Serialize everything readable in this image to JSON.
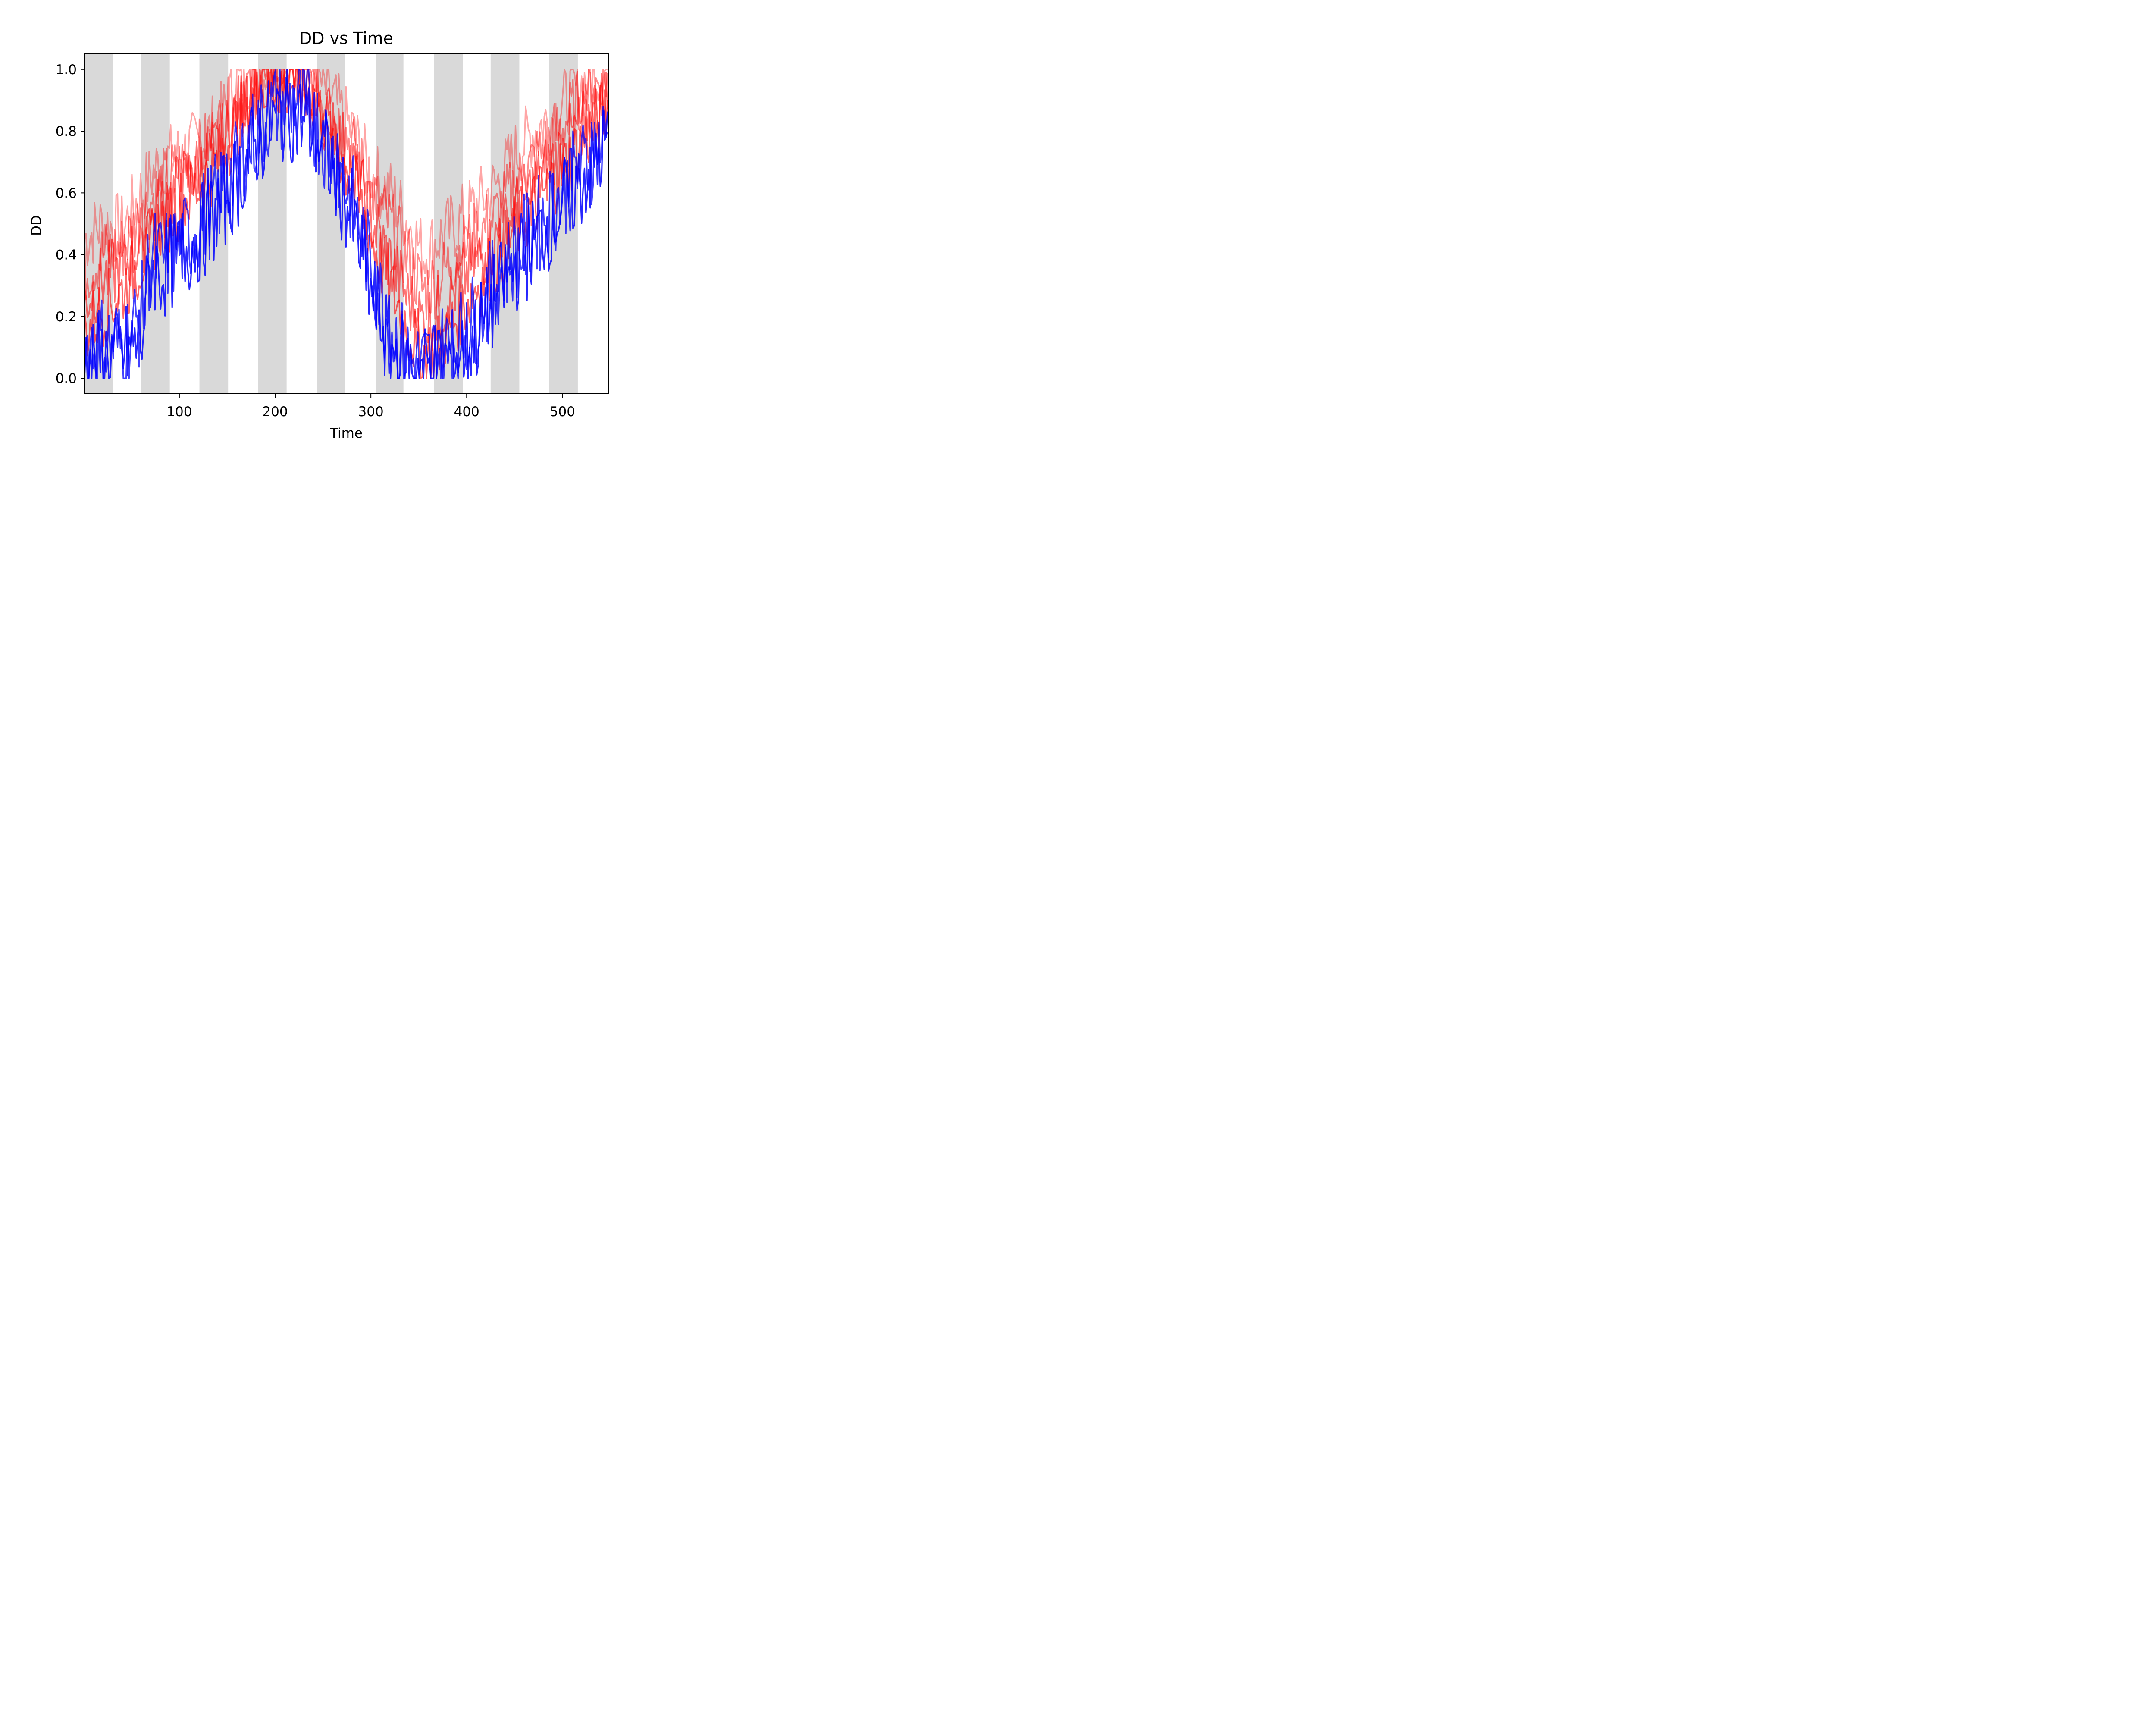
{
  "chart_data": {
    "type": "line",
    "title": "DD vs Time",
    "xlabel": "Time",
    "ylabel": "DD",
    "xlim": [
      1,
      548
    ],
    "ylim": [
      -0.05,
      1.05
    ],
    "x_ticks": [
      100,
      200,
      300,
      400,
      500
    ],
    "y_ticks": [
      0.0,
      0.2,
      0.4,
      0.6,
      0.8,
      1.0
    ],
    "y_tick_labels": [
      "0.0",
      "0.2",
      "0.4",
      "0.6",
      "0.8",
      "1.0"
    ],
    "grid": false,
    "legend": "none",
    "shaded_bands": [
      [
        1,
        31
      ],
      [
        60,
        90
      ],
      [
        121,
        151
      ],
      [
        182,
        212
      ],
      [
        244,
        273
      ],
      [
        305,
        334
      ],
      [
        366,
        396
      ],
      [
        425,
        455
      ],
      [
        486,
        516
      ]
    ],
    "colors": {
      "band": "#d9d9d9",
      "red": "#ff0000",
      "blue": "#0000ff"
    },
    "series": [
      {
        "color": "red",
        "opacity": 0.35,
        "values": [
          [
            1,
            0.45
          ],
          [
            20,
            0.5
          ],
          [
            40,
            0.48
          ],
          [
            60,
            0.6
          ],
          [
            80,
            0.7
          ],
          [
            100,
            0.72
          ],
          [
            120,
            0.76
          ],
          [
            140,
            0.82
          ],
          [
            160,
            0.95
          ],
          [
            180,
            1.0
          ],
          [
            200,
            1.0
          ],
          [
            220,
            1.0
          ],
          [
            240,
            0.98
          ],
          [
            260,
            0.9
          ],
          [
            280,
            0.8
          ],
          [
            300,
            0.66
          ],
          [
            320,
            0.6
          ],
          [
            340,
            0.5
          ],
          [
            355,
            0.4
          ],
          [
            370,
            0.45
          ],
          [
            390,
            0.5
          ],
          [
            410,
            0.56
          ],
          [
            430,
            0.62
          ],
          [
            450,
            0.72
          ],
          [
            470,
            0.8
          ],
          [
            490,
            0.85
          ],
          [
            510,
            0.92
          ],
          [
            530,
            0.98
          ],
          [
            548,
            1.0
          ]
        ]
      },
      {
        "color": "red",
        "opacity": 0.45,
        "values": [
          [
            1,
            0.35
          ],
          [
            20,
            0.4
          ],
          [
            40,
            0.42
          ],
          [
            60,
            0.52
          ],
          [
            80,
            0.62
          ],
          [
            100,
            0.68
          ],
          [
            120,
            0.72
          ],
          [
            140,
            0.8
          ],
          [
            160,
            0.9
          ],
          [
            180,
            0.97
          ],
          [
            200,
            1.0
          ],
          [
            220,
            1.0
          ],
          [
            240,
            0.96
          ],
          [
            260,
            0.86
          ],
          [
            280,
            0.76
          ],
          [
            300,
            0.6
          ],
          [
            320,
            0.5
          ],
          [
            340,
            0.38
          ],
          [
            355,
            0.28
          ],
          [
            370,
            0.32
          ],
          [
            390,
            0.4
          ],
          [
            410,
            0.46
          ],
          [
            430,
            0.52
          ],
          [
            450,
            0.62
          ],
          [
            470,
            0.7
          ],
          [
            490,
            0.78
          ],
          [
            510,
            0.86
          ],
          [
            530,
            0.93
          ],
          [
            548,
            0.98
          ]
        ]
      },
      {
        "color": "red",
        "opacity": 0.55,
        "values": [
          [
            1,
            0.25
          ],
          [
            20,
            0.32
          ],
          [
            40,
            0.35
          ],
          [
            60,
            0.45
          ],
          [
            80,
            0.55
          ],
          [
            100,
            0.62
          ],
          [
            120,
            0.68
          ],
          [
            140,
            0.74
          ],
          [
            160,
            0.86
          ],
          [
            180,
            0.95
          ],
          [
            200,
            0.97
          ],
          [
            220,
            0.98
          ],
          [
            240,
            0.93
          ],
          [
            260,
            0.82
          ],
          [
            280,
            0.7
          ],
          [
            300,
            0.52
          ],
          [
            320,
            0.38
          ],
          [
            340,
            0.25
          ],
          [
            355,
            0.18
          ],
          [
            370,
            0.22
          ],
          [
            390,
            0.3
          ],
          [
            410,
            0.38
          ],
          [
            430,
            0.44
          ],
          [
            450,
            0.54
          ],
          [
            470,
            0.62
          ],
          [
            490,
            0.7
          ],
          [
            510,
            0.78
          ],
          [
            530,
            0.86
          ],
          [
            548,
            0.92
          ]
        ]
      },
      {
        "color": "red",
        "opacity": 0.6,
        "values": [
          [
            1,
            0.15
          ],
          [
            20,
            0.22
          ],
          [
            40,
            0.28
          ],
          [
            60,
            0.38
          ],
          [
            80,
            0.5
          ],
          [
            100,
            0.56
          ],
          [
            120,
            0.62
          ],
          [
            140,
            0.7
          ],
          [
            160,
            0.82
          ],
          [
            180,
            0.92
          ],
          [
            200,
            0.95
          ],
          [
            220,
            0.96
          ],
          [
            240,
            0.9
          ],
          [
            260,
            0.78
          ],
          [
            280,
            0.64
          ],
          [
            300,
            0.46
          ],
          [
            320,
            0.3
          ],
          [
            340,
            0.15
          ],
          [
            355,
            0.08
          ],
          [
            370,
            0.1
          ],
          [
            390,
            0.2
          ],
          [
            410,
            0.3
          ],
          [
            430,
            0.38
          ],
          [
            450,
            0.48
          ],
          [
            470,
            0.56
          ],
          [
            490,
            0.64
          ],
          [
            510,
            0.72
          ],
          [
            530,
            0.8
          ],
          [
            548,
            0.88
          ]
        ]
      },
      {
        "color": "blue",
        "opacity": 0.75,
        "values": [
          [
            1,
            0.1
          ],
          [
            20,
            0.12
          ],
          [
            40,
            0.1
          ],
          [
            60,
            0.2
          ],
          [
            70,
            0.4
          ],
          [
            80,
            0.38
          ],
          [
            100,
            0.42
          ],
          [
            120,
            0.5
          ],
          [
            140,
            0.58
          ],
          [
            160,
            0.68
          ],
          [
            180,
            0.8
          ],
          [
            200,
            0.88
          ],
          [
            220,
            0.9
          ],
          [
            240,
            0.84
          ],
          [
            260,
            0.72
          ],
          [
            280,
            0.58
          ],
          [
            300,
            0.36
          ],
          [
            320,
            0.16
          ],
          [
            340,
            0.06
          ],
          [
            355,
            0.04
          ],
          [
            370,
            0.08
          ],
          [
            390,
            0.12
          ],
          [
            410,
            0.2
          ],
          [
            430,
            0.32
          ],
          [
            450,
            0.4
          ],
          [
            470,
            0.48
          ],
          [
            490,
            0.56
          ],
          [
            510,
            0.64
          ],
          [
            530,
            0.72
          ],
          [
            548,
            0.8
          ]
        ]
      },
      {
        "color": "blue",
        "opacity": 0.85,
        "values": [
          [
            1,
            0.05
          ],
          [
            20,
            0.06
          ],
          [
            40,
            0.08
          ],
          [
            60,
            0.12
          ],
          [
            70,
            0.36
          ],
          [
            80,
            0.34
          ],
          [
            100,
            0.4
          ],
          [
            120,
            0.46
          ],
          [
            140,
            0.54
          ],
          [
            160,
            0.64
          ],
          [
            180,
            0.76
          ],
          [
            200,
            0.84
          ],
          [
            220,
            0.86
          ],
          [
            240,
            0.8
          ],
          [
            260,
            0.68
          ],
          [
            280,
            0.52
          ],
          [
            300,
            0.28
          ],
          [
            320,
            0.1
          ],
          [
            340,
            0.04
          ],
          [
            355,
            0.03
          ],
          [
            370,
            0.04
          ],
          [
            390,
            0.08
          ],
          [
            410,
            0.14
          ],
          [
            430,
            0.26
          ],
          [
            450,
            0.36
          ],
          [
            470,
            0.44
          ],
          [
            490,
            0.52
          ],
          [
            510,
            0.6
          ],
          [
            530,
            0.68
          ],
          [
            548,
            0.76
          ]
        ]
      }
    ]
  }
}
